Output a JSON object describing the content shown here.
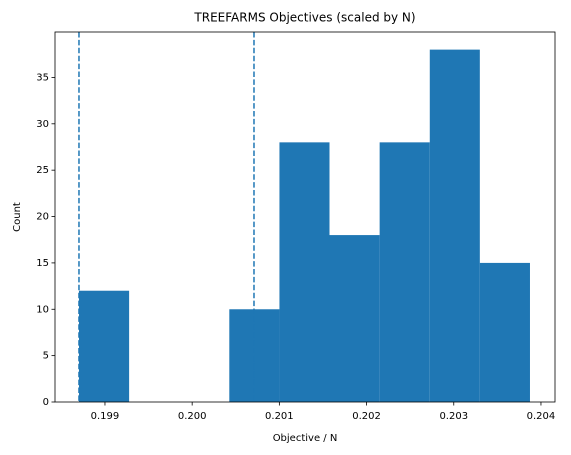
{
  "chart_data": {
    "type": "histogram",
    "title": "TREEFARMS Objectives (scaled by N)",
    "x_label": "Objective / N",
    "y_label": "Count",
    "bins": [
      0.198702,
      0.199277,
      0.199851,
      0.200426,
      0.201001,
      0.201575,
      0.20215,
      0.202725,
      0.203299,
      0.203874
    ],
    "values": [
      12,
      0,
      0,
      10,
      28,
      18,
      28,
      38,
      15
    ],
    "color": "#1f77b4",
    "vlines": [
      0.198702,
      0.200709
    ],
    "vline_color": "#1f77b4",
    "xlim": [
      0.198427,
      0.204161
    ],
    "xticks": [
      0.199,
      {
        "value": 0.2,
        "label": "0.200"
      },
      0.201,
      0.202,
      0.203,
      0.204
    ],
    "ylim": [
      0,
      39.9
    ],
    "yticks": [
      0,
      5,
      10,
      15,
      20,
      25,
      30,
      35
    ],
    "grid": false
  }
}
